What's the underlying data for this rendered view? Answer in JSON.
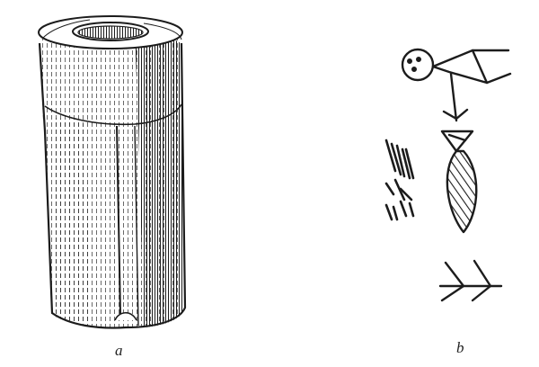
{
  "figure": {
    "captions": {
      "a": "a",
      "b": "b"
    },
    "ink_color": "#1c1c1c",
    "background_color": "#ffffff"
  }
}
